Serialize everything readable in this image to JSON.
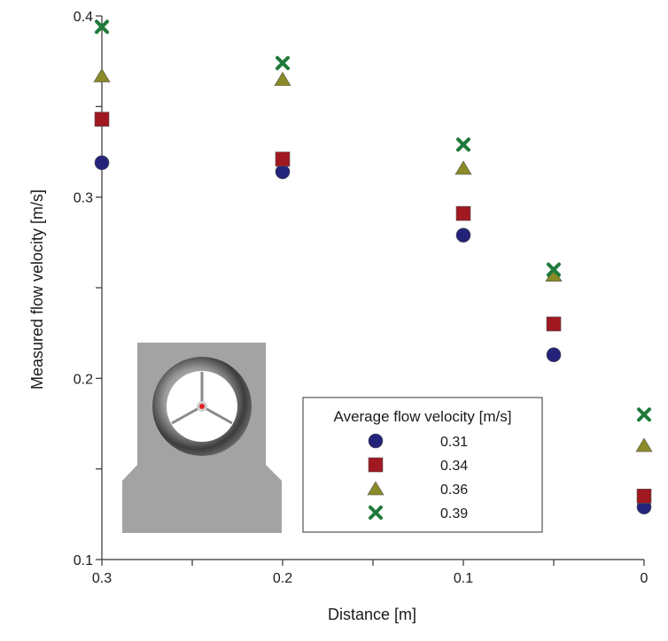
{
  "chart_data": {
    "type": "scatter",
    "title": "",
    "xlabel": "Distance [m]",
    "ylabel": "Measured flow velocity [m/s]",
    "xlim": [
      0.3,
      0
    ],
    "ylim": [
      0.1,
      0.4
    ],
    "x_ticks": [
      0.3,
      0.25,
      0.2,
      0.15,
      0.1,
      0.05,
      0
    ],
    "x_tick_labels": [
      "0.3",
      "0.2",
      "0.1",
      "0"
    ],
    "x_tick_label_values": [
      0.3,
      0.2,
      0.1,
      0
    ],
    "y_ticks": [
      0.1,
      0.15,
      0.2,
      0.25,
      0.3,
      0.35,
      0.4
    ],
    "y_tick_labels": [
      "0.1",
      "0.2",
      "0.3",
      "0.4"
    ],
    "y_tick_label_values": [
      0.1,
      0.2,
      0.3,
      0.4
    ],
    "grid": false,
    "legend": {
      "title": "Average flow velocity [m/s]",
      "placement": "bottom-right"
    },
    "x": [
      0.3,
      0.2,
      0.1,
      0.05,
      0
    ],
    "series": [
      {
        "name": "0.31",
        "marker": "circle",
        "color": "#23237a",
        "values": [
          0.319,
          0.314,
          0.279,
          0.213,
          0.129
        ]
      },
      {
        "name": "0.34",
        "marker": "square",
        "color": "#a01820",
        "values": [
          0.343,
          0.321,
          0.291,
          0.23,
          0.135
        ]
      },
      {
        "name": "0.36",
        "marker": "triangle",
        "color": "#8a8a28",
        "values": [
          0.367,
          0.365,
          0.316,
          0.257,
          0.163
        ]
      },
      {
        "name": "0.39",
        "marker": "x",
        "color": "#1f7a3a",
        "values": [
          0.394,
          0.374,
          0.329,
          0.26,
          0.18
        ]
      }
    ]
  },
  "inset": {
    "description_icon": "turbine-housing-icon",
    "body_color": "#a3a3a3",
    "hub_color": "#e02020"
  }
}
